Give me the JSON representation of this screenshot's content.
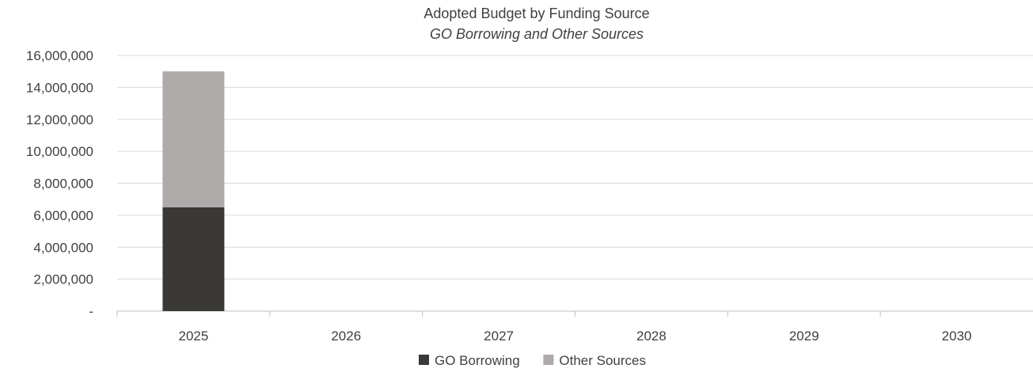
{
  "chart_data": {
    "type": "bar",
    "stacked": true,
    "title": "Adopted Budget by Funding Source",
    "subtitle": "GO Borrowing and Other Sources",
    "categories": [
      "2025",
      "2026",
      "2027",
      "2028",
      "2029",
      "2030"
    ],
    "series": [
      {
        "name": "GO Borrowing",
        "color": "#3a3938",
        "values": [
          6500000,
          0,
          0,
          0,
          0,
          0
        ]
      },
      {
        "name": "Other Sources",
        "color": "#aeaaaa",
        "values": [
          8500000,
          0,
          0,
          0,
          0,
          0
        ]
      }
    ],
    "ylim": [
      0,
      16000000
    ],
    "y_ticks": [
      0,
      2000000,
      4000000,
      6000000,
      8000000,
      10000000,
      12000000,
      14000000,
      16000000
    ],
    "y_tick_labels": [
      "-",
      "2,000,000",
      "4,000,000",
      "6,000,000",
      "8,000,000",
      "10,000,000",
      "12,000,000",
      "14,000,000",
      "16,000,000"
    ],
    "grid": true,
    "legend_position": "bottom",
    "xlabel": "",
    "ylabel": ""
  }
}
